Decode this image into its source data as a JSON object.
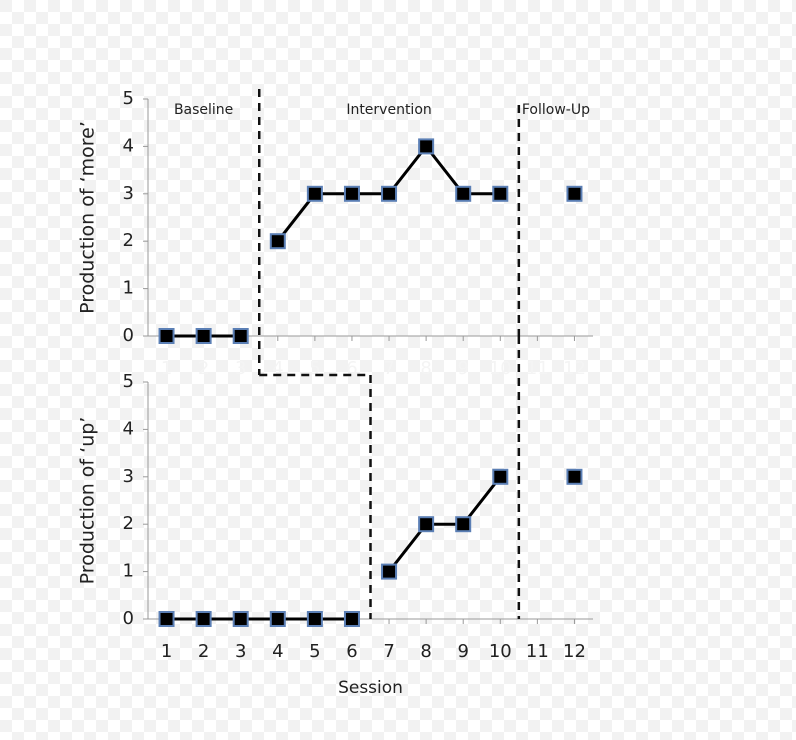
{
  "chart_data": [
    {
      "type": "line",
      "ylabel": "Production of ‘more’",
      "x": [
        1,
        2,
        3,
        4,
        5,
        6,
        7,
        8,
        9,
        10,
        11,
        12
      ],
      "values": [
        0,
        0,
        0,
        2,
        3,
        3,
        3,
        4,
        3,
        3,
        null,
        3
      ],
      "xlim": [
        0.5,
        12.5
      ],
      "ylim": [
        0,
        5
      ],
      "yticks": [
        0,
        1,
        2,
        3,
        4,
        5
      ],
      "xticks": [
        1,
        2,
        3,
        4,
        5,
        6,
        7,
        8,
        9,
        10,
        11,
        12
      ],
      "xtick_color": "#f4f4f4",
      "phase_changes": [
        3.5,
        10.5
      ],
      "phase_labels": [
        "Baseline",
        "Intervention",
        "Follow-Up"
      ],
      "color": "#000000",
      "marker_color": "#5b7fb5"
    },
    {
      "type": "line",
      "ylabel": "Production of ‘up’",
      "xlabel": "Session",
      "x": [
        1,
        2,
        3,
        4,
        5,
        6,
        7,
        8,
        9,
        10,
        11,
        12
      ],
      "values": [
        0,
        0,
        0,
        0,
        0,
        0,
        1,
        2,
        2,
        3,
        null,
        3
      ],
      "xlim": [
        0.5,
        12.5
      ],
      "ylim": [
        0,
        5
      ],
      "yticks": [
        0,
        1,
        2,
        3,
        4,
        5
      ],
      "xticks": [
        1,
        2,
        3,
        4,
        5,
        6,
        7,
        8,
        9,
        10,
        11,
        12
      ],
      "xtick_color": "#222222",
      "phase_changes": [
        6.5,
        10.5
      ],
      "color": "#000000",
      "marker_color": "#5b7fb5"
    }
  ]
}
